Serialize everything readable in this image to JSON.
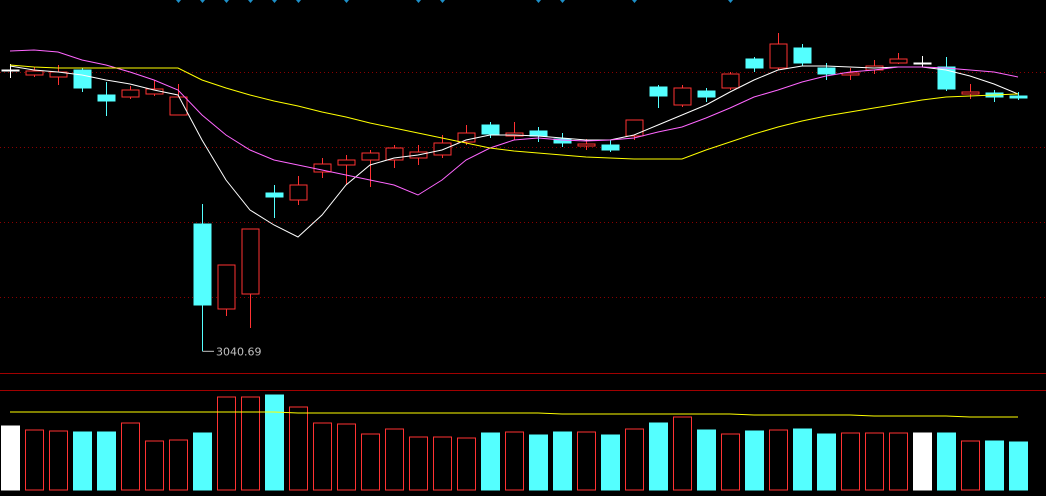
{
  "chart_data": {
    "type": "candlestick",
    "ylim": [
      3022,
      3392
    ],
    "ygrid": [
      3320,
      3245,
      3170,
      3095
    ],
    "grid": true,
    "up_color": "#ff3232",
    "down_color": "#54ffff",
    "flat_color": "#ffffff",
    "open": [
      3322,
      3317,
      3315,
      3322,
      3297,
      3295,
      3298,
      3277,
      3168,
      3083,
      3098,
      3199,
      3192,
      3220,
      3227,
      3232,
      3232,
      3234,
      3237,
      3250,
      3267,
      3256,
      3261,
      3253,
      3246,
      3247,
      3256,
      3305,
      3287,
      3301,
      3304,
      3333,
      3324,
      3344,
      3324,
      3317,
      3322,
      3329,
      3329,
      3325,
      3298,
      3299,
      3296
    ],
    "high": [
      3328,
      3325,
      3327,
      3324,
      3310,
      3306,
      3312,
      3308,
      3188,
      3127,
      3163,
      3207,
      3216,
      3234,
      3237,
      3242,
      3247,
      3247,
      3257,
      3267,
      3270,
      3270,
      3265,
      3259,
      3253,
      3252,
      3272,
      3307,
      3307,
      3304,
      3320,
      3335,
      3359,
      3348,
      3329,
      3324,
      3332,
      3339,
      3336,
      3335,
      3308,
      3302,
      3300
    ],
    "low": [
      3314,
      3315,
      3307,
      3300,
      3276,
      3293,
      3296,
      3277,
      3040.69,
      3076,
      3064,
      3174,
      3187,
      3214,
      3207,
      3205,
      3224,
      3227,
      3234,
      3247,
      3254,
      3252,
      3250,
      3245,
      3242,
      3240,
      3252,
      3284,
      3285,
      3290,
      3302,
      3320,
      3322,
      3326,
      3312,
      3312,
      3318,
      3328,
      3325,
      3301,
      3293,
      3290,
      3292
    ],
    "close": [
      3322,
      3321,
      3320,
      3304,
      3291,
      3302,
      3303,
      3295,
      3087,
      3127,
      3163,
      3195,
      3207,
      3228,
      3232,
      3239,
      3244,
      3240,
      3249,
      3259,
      3258,
      3259,
      3256,
      3249,
      3248,
      3242,
      3272,
      3296,
      3304,
      3295,
      3318,
      3324,
      3348,
      3329,
      3318,
      3319,
      3326,
      3333,
      3329,
      3303,
      3300,
      3295,
      3294
    ],
    "moving_averages": [
      {
        "color": "#ffffff",
        "values": [
          3326,
          3322,
          3320,
          3317,
          3312,
          3308,
          3302,
          3297,
          3252,
          3212,
          3182,
          3167,
          3155,
          3177,
          3207,
          3227,
          3234,
          3237,
          3242,
          3252,
          3257,
          3257,
          3256,
          3254,
          3252,
          3252,
          3257,
          3267,
          3277,
          3287,
          3300,
          3312,
          3322,
          3326,
          3326,
          3325,
          3324,
          3325,
          3325,
          3322,
          3316,
          3308,
          3298
        ]
      },
      {
        "color": "#ff66ff",
        "values": [
          3341,
          3342,
          3340,
          3332,
          3327,
          3320,
          3312,
          3302,
          3277,
          3257,
          3242,
          3232,
          3227,
          3222,
          3217,
          3212,
          3207,
          3197,
          3212,
          3232,
          3244,
          3252,
          3254,
          3252,
          3251,
          3252,
          3254,
          3260,
          3265,
          3274,
          3284,
          3295,
          3302,
          3310,
          3316,
          3320,
          3322,
          3325,
          3325,
          3324,
          3322,
          3320,
          3315
        ]
      },
      {
        "color": "#ffff00",
        "values": [
          3327,
          3325,
          3324,
          3324,
          3324,
          3324,
          3324,
          3324,
          3312,
          3304,
          3297,
          3291,
          3286,
          3280,
          3275,
          3269,
          3264,
          3259,
          3254,
          3249,
          3244,
          3241,
          3239,
          3237,
          3235,
          3234,
          3233,
          3233,
          3233,
          3242,
          3250,
          3258,
          3265,
          3271,
          3276,
          3280,
          3284,
          3288,
          3292,
          3295,
          3296,
          3297,
          3298
        ]
      }
    ],
    "volume": {
      "ylim": [
        0,
        100
      ],
      "values": [
        64,
        60,
        59,
        58,
        58,
        67,
        49,
        50,
        57,
        93,
        93,
        95,
        83,
        67,
        66,
        56,
        61,
        53,
        53,
        52,
        57,
        58,
        55,
        58,
        58,
        55,
        61,
        67,
        73,
        60,
        56,
        59,
        60,
        61,
        56,
        57,
        57,
        57,
        57,
        57,
        49,
        49,
        48
      ],
      "ma": {
        "color": "#ffff00",
        "values": [
          78,
          78,
          78,
          78,
          78,
          78,
          78,
          78,
          78,
          78,
          78,
          78,
          77,
          77,
          77,
          77,
          77,
          77,
          77,
          77,
          77,
          77,
          77,
          76,
          76,
          76,
          76,
          76,
          76,
          76,
          76,
          75,
          75,
          75,
          75,
          75,
          74,
          74,
          74,
          74,
          73,
          73,
          73
        ]
      }
    }
  }
}
